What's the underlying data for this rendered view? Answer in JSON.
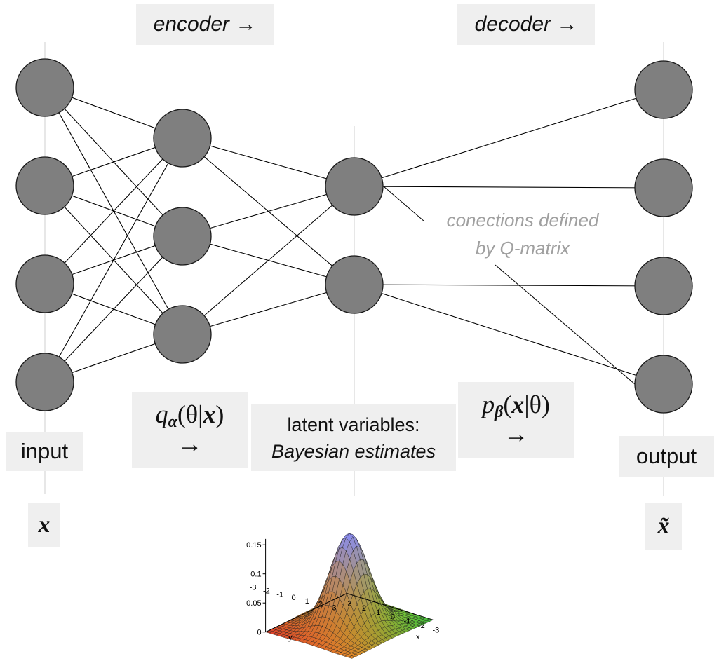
{
  "labels": {
    "encoder": "encoder →",
    "decoder": "decoder →",
    "input": "input",
    "output": "output",
    "x_symbol": "x",
    "xhat_symbol": "x̃",
    "latent_line1": "latent variables:",
    "latent_line2": "Bayesian estimates",
    "q_letter": "q",
    "q_sub": "α",
    "q_args": "(θ|",
    "q_x": "x",
    "q_close": ")",
    "q_arrow": "→",
    "p_letter": "p",
    "p_sub": "β",
    "p_args": "(",
    "p_x": "x",
    "p_close": "|θ)",
    "p_arrow": "→",
    "note_line1": "conections defined",
    "note_line2": "by Q-matrix"
  },
  "layers": {
    "input_nodes": 4,
    "encoder_nodes": 3,
    "latent_nodes": 2,
    "output_nodes": 4
  },
  "q_matrix_connections": [
    [
      0,
      0
    ],
    [
      0,
      1
    ],
    [
      1,
      2
    ],
    [
      1,
      3
    ]
  ],
  "colors": {
    "node_fill": "#7f7f7f",
    "node_stroke": "#1a1a1a",
    "label_bg": "#efefef",
    "note_text": "#a0a0a0"
  },
  "surface_plot": {
    "z_ticks": [
      "0",
      "0.05",
      "0.1",
      "0.15"
    ],
    "x_ticks": [
      "-3",
      "-2",
      "-1",
      "0",
      "1",
      "2",
      "3"
    ],
    "y_ticks": [
      "-3",
      "-2",
      "-1",
      "0",
      "1",
      "2",
      "3"
    ],
    "x_label": "x",
    "y_label": "y"
  }
}
